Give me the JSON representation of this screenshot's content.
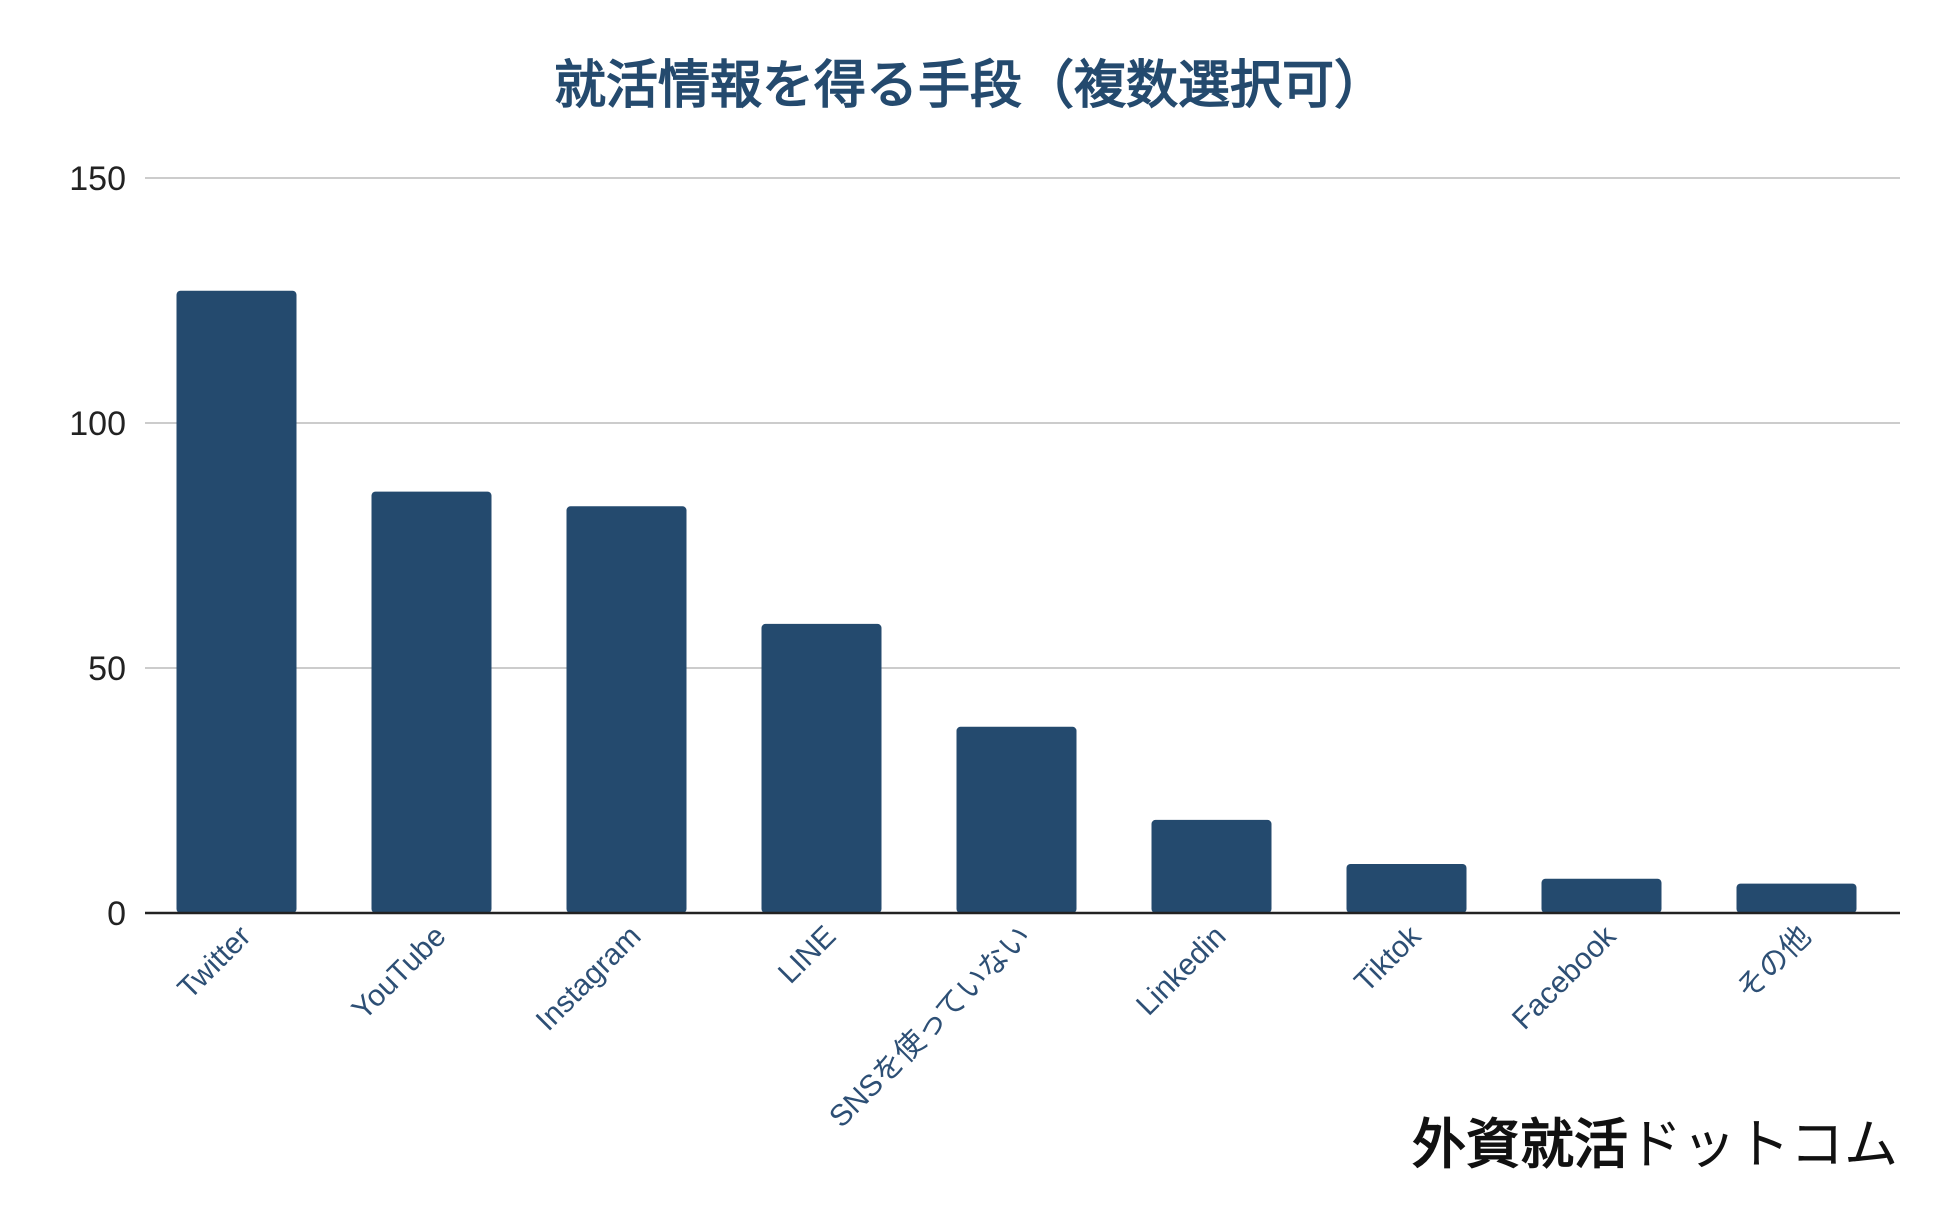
{
  "chart_data": {
    "type": "bar",
    "title": "就活情報を得る手段（複数選択可）",
    "categories": [
      "Twitter",
      "YouTube",
      "Instagram",
      "LINE",
      "SNSを使っていない",
      "Linkedin",
      "Tiktok",
      "Facebook",
      "その他"
    ],
    "values": [
      127,
      86,
      83,
      59,
      38,
      19,
      10,
      7,
      6
    ],
    "ylim": [
      0,
      150
    ],
    "yticks": [
      "0",
      "50",
      "100",
      "150"
    ],
    "grid": true,
    "legend": "none",
    "xlabel": "",
    "ylabel": ""
  },
  "branding": {
    "name_bold": "外資就活",
    "name_light": "ドットコム"
  },
  "colors": {
    "bar": "#244a6e",
    "title": "#244a6e",
    "tick_label": "#2d4f75",
    "grid": "#cccccc",
    "axis": "#222222"
  }
}
